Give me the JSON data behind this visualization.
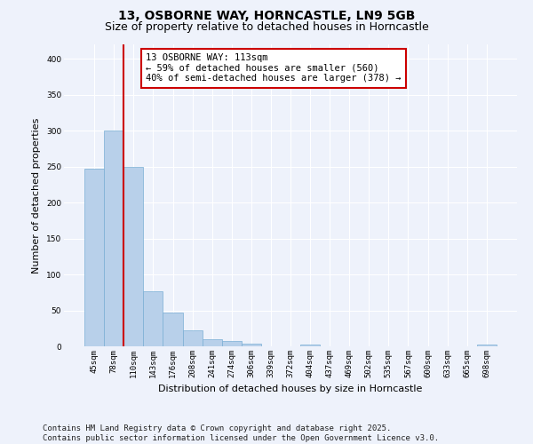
{
  "title1": "13, OSBORNE WAY, HORNCASTLE, LN9 5GB",
  "title2": "Size of property relative to detached houses in Horncastle",
  "xlabel": "Distribution of detached houses by size in Horncastle",
  "ylabel": "Number of detached properties",
  "categories": [
    "45sqm",
    "78sqm",
    "110sqm",
    "143sqm",
    "176sqm",
    "208sqm",
    "241sqm",
    "274sqm",
    "306sqm",
    "339sqm",
    "372sqm",
    "404sqm",
    "437sqm",
    "469sqm",
    "502sqm",
    "535sqm",
    "567sqm",
    "600sqm",
    "633sqm",
    "665sqm",
    "698sqm"
  ],
  "values": [
    247,
    300,
    250,
    77,
    47,
    22,
    10,
    7,
    4,
    0,
    0,
    3,
    0,
    0,
    0,
    0,
    0,
    0,
    0,
    0,
    3
  ],
  "bar_color": "#b8d0ea",
  "bar_edge_color": "#7aafd4",
  "vline_color": "#cc0000",
  "annotation_text": "13 OSBORNE WAY: 113sqm\n← 59% of detached houses are smaller (560)\n40% of semi-detached houses are larger (378) →",
  "annotation_box_color": "#ffffff",
  "annotation_box_edge": "#cc0000",
  "ylim": [
    0,
    420
  ],
  "yticks": [
    0,
    50,
    100,
    150,
    200,
    250,
    300,
    350,
    400
  ],
  "footer1": "Contains HM Land Registry data © Crown copyright and database right 2025.",
  "footer2": "Contains public sector information licensed under the Open Government Licence v3.0.",
  "background_color": "#eef2fb",
  "grid_color": "#ffffff",
  "title1_fontsize": 10,
  "title2_fontsize": 9,
  "xlabel_fontsize": 8,
  "ylabel_fontsize": 8,
  "tick_fontsize": 6.5,
  "annotation_fontsize": 7.5,
  "footer_fontsize": 6.5
}
